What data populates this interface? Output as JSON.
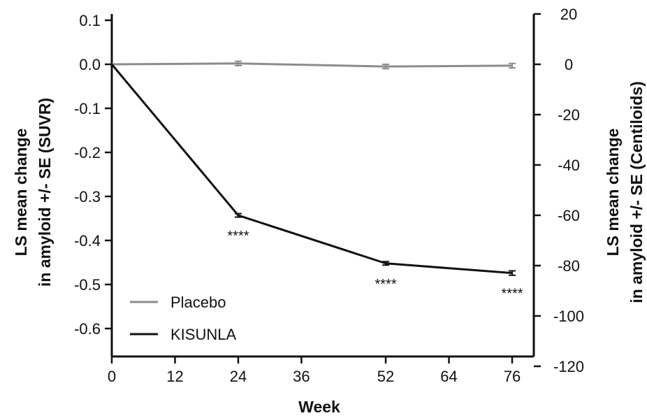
{
  "chart_data": {
    "type": "line",
    "xlabel": "Week",
    "ylabel_left": "LS mean change in amyloid +/- SE (SUVR)",
    "ylabel_left_lines": [
      "LS mean change",
      "in amyloid +/- SE (SUVR)"
    ],
    "ylabel_right": "LS mean change in amyloid +/- SE (Centiloids)",
    "ylabel_right_lines": [
      "LS mean change",
      "in amyloid +/- SE (Centiloids)"
    ],
    "x_ticks": [
      0,
      12,
      24,
      36,
      52,
      64,
      76
    ],
    "x_tick_labels": [
      "0",
      "12",
      "24",
      "36",
      "52",
      "64",
      "76"
    ],
    "xlim": [
      0,
      80
    ],
    "y_left_ticks": [
      0.1,
      0.0,
      -0.1,
      -0.2,
      -0.3,
      -0.4,
      -0.5,
      -0.6
    ],
    "y_left_tick_labels": [
      "0.1",
      "0.0",
      "-0.1",
      "-0.2",
      "-0.3",
      "-0.4",
      "-0.5",
      "-0.6"
    ],
    "ylim_left": [
      -0.66,
      0.11
    ],
    "y_right_ticks": [
      20,
      0,
      -20,
      -40,
      -60,
      -80,
      -100,
      -120
    ],
    "y_right_tick_labels": [
      "20",
      "0",
      "-20",
      "-40",
      "-60",
      "-80",
      "-100",
      "-120"
    ],
    "ylim_right": [
      -120,
      20
    ],
    "grid": false,
    "legend_position": "bottom-left",
    "series": [
      {
        "name": "Placebo",
        "color": "#8c8c8c",
        "x": [
          0,
          24,
          52,
          76
        ],
        "y": [
          0.0,
          0.002,
          -0.005,
          -0.003
        ],
        "se": [
          0,
          0.005,
          0.005,
          0.005
        ]
      },
      {
        "name": "KISUNLA",
        "color": "#111111",
        "x": [
          0,
          24,
          52,
          76
        ],
        "y": [
          0.0,
          -0.343,
          -0.452,
          -0.474
        ],
        "se": [
          0,
          0.004,
          0.004,
          0.005
        ]
      }
    ],
    "annotations": [
      {
        "x": 24,
        "text": "****"
      },
      {
        "x": 52,
        "text": "****"
      },
      {
        "x": 76,
        "text": "****"
      }
    ]
  }
}
